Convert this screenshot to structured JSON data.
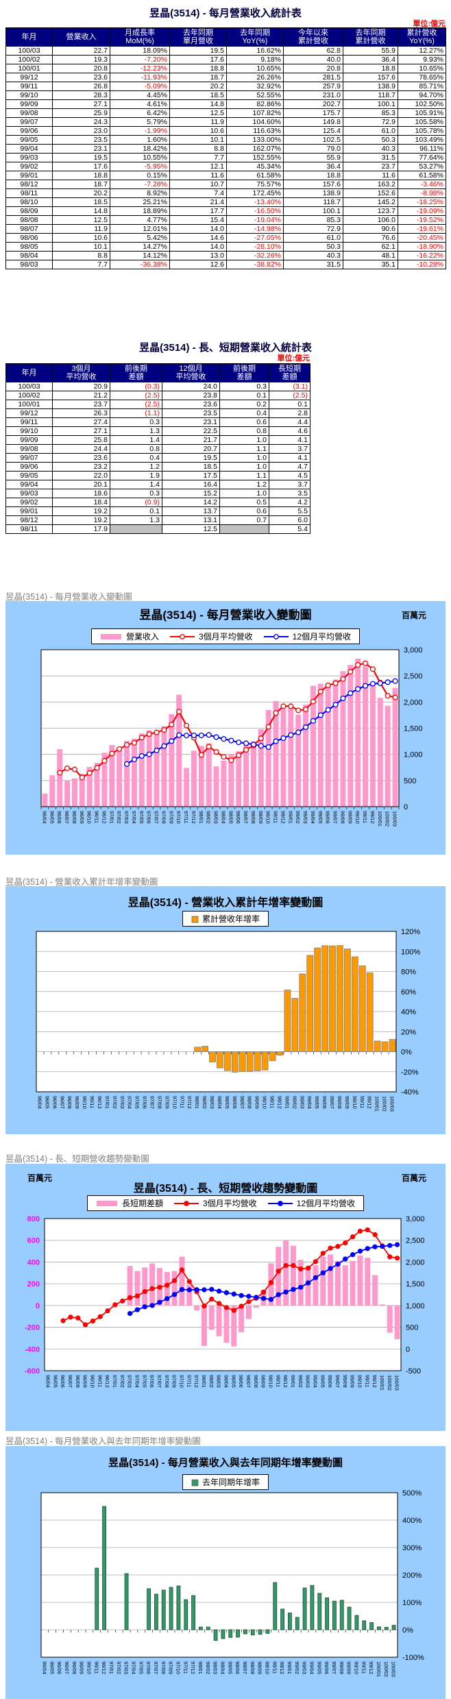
{
  "page": {
    "table1": {
      "title": "昱晶(3514) - 每月營業收入統計表",
      "unit": "單位:億元",
      "headers": [
        "年月",
        "營業收入",
        "月成長率\nMoM(%)",
        "去年同期\n單月營收",
        "去年同期\nYoY(%)",
        "今年以來\n累計營收",
        "去年同期\n累計營收",
        "累計營收\nYoY(%)"
      ],
      "rows": [
        [
          "100/03",
          "22.7",
          "18.09%",
          "19.5",
          "16.62%",
          "62.8",
          "55.9",
          "12.27%"
        ],
        [
          "100/02",
          "19.3",
          "-7.20%",
          "17.6",
          "9.18%",
          "40.0",
          "36.4",
          "9.93%"
        ],
        [
          "100/01",
          "20.8",
          "-12.23%",
          "18.8",
          "10.65%",
          "20.8",
          "18.8",
          "10.65%"
        ],
        [
          "99/12",
          "23.6",
          "-11.93%",
          "18.7",
          "26.26%",
          "281.5",
          "157.6",
          "78.65%"
        ],
        [
          "99/11",
          "26.8",
          "-5.09%",
          "20.2",
          "32.92%",
          "257.9",
          "138.9",
          "85.71%"
        ],
        [
          "99/10",
          "28.3",
          "4.45%",
          "18.5",
          "52.55%",
          "231.0",
          "118.7",
          "94.70%"
        ],
        [
          "99/09",
          "27.1",
          "4.61%",
          "14.8",
          "82.86%",
          "202.7",
          "100.1",
          "102.50%"
        ],
        [
          "99/08",
          "25.9",
          "6.42%",
          "12.5",
          "107.82%",
          "175.7",
          "85.3",
          "105.91%"
        ],
        [
          "99/07",
          "24.3",
          "5.79%",
          "11.9",
          "104.60%",
          "149.8",
          "72.9",
          "105.58%"
        ],
        [
          "99/06",
          "23.0",
          "-1.99%",
          "10.6",
          "116.63%",
          "125.4",
          "61.0",
          "105.78%"
        ],
        [
          "99/05",
          "23.5",
          "1.60%",
          "10.1",
          "133.00%",
          "102.5",
          "50.3",
          "103.49%"
        ],
        [
          "99/04",
          "23.1",
          "18.42%",
          "8.8",
          "162.07%",
          "79.0",
          "40.3",
          "96.11%"
        ],
        [
          "99/03",
          "19.5",
          "10.55%",
          "7.7",
          "152.55%",
          "55.9",
          "31.5",
          "77.64%"
        ],
        [
          "99/02",
          "17.6",
          "-5.95%",
          "12.1",
          "45.34%",
          "36.4",
          "23.7",
          "53.27%"
        ],
        [
          "99/01",
          "18.8",
          "0.15%",
          "11.6",
          "61.58%",
          "18.8",
          "11.6",
          "61.58%"
        ],
        [
          "98/12",
          "18.7",
          "-7.28%",
          "10.7",
          "75.57%",
          "157.6",
          "163.2",
          "-3.46%"
        ],
        [
          "98/11",
          "20.2",
          "8.92%",
          "7.4",
          "172.45%",
          "138.9",
          "152.6",
          "-8.98%"
        ],
        [
          "98/10",
          "18.5",
          "25.21%",
          "21.4",
          "-13.40%",
          "118.7",
          "145.2",
          "-18.25%"
        ],
        [
          "98/09",
          "14.8",
          "18.89%",
          "17.7",
          "-16.50%",
          "100.1",
          "123.7",
          "-19.09%"
        ],
        [
          "98/08",
          "12.5",
          "4.77%",
          "15.4",
          "-19.04%",
          "85.3",
          "106.0",
          "-19.52%"
        ],
        [
          "98/07",
          "11.9",
          "12.01%",
          "14.0",
          "-14.98%",
          "72.9",
          "90.6",
          "-19.61%"
        ],
        [
          "98/06",
          "10.6",
          "5.42%",
          "14.6",
          "-27.05%",
          "61.0",
          "76.6",
          "-20.45%"
        ],
        [
          "98/05",
          "10.1",
          "14.27%",
          "14.0",
          "-28.10%",
          "50.3",
          "62.1",
          "-18.90%"
        ],
        [
          "98/04",
          "8.8",
          "14.12%",
          "13.0",
          "-32.26%",
          "40.3",
          "48.1",
          "-16.22%"
        ],
        [
          "98/03",
          "7.7",
          "-36.38%",
          "12.6",
          "-38.82%",
          "31.5",
          "35.1",
          "-10.28%"
        ]
      ]
    },
    "table2": {
      "title": "昱晶(3514) - 長、短期營業收入統計表",
      "unit": "單位:億元",
      "headers": [
        "年月",
        "3個月\n平均營收",
        "前後期\n差額",
        "12個月\n平均營收",
        "前後期\n差額",
        "長短期\n差額"
      ],
      "rows": [
        [
          "100/03",
          "20.9",
          "(0.3)",
          "24.0",
          "0.3",
          "(3.1)"
        ],
        [
          "100/02",
          "21.2",
          "(2.5)",
          "23.8",
          "0.1",
          "(2.5)"
        ],
        [
          "100/01",
          "23.7",
          "(2.5)",
          "23.6",
          "0.2",
          "0.1"
        ],
        [
          "99/12",
          "26.3",
          "(1.1)",
          "23.5",
          "0.4",
          "2.8"
        ],
        [
          "99/11",
          "27.4",
          "0.3",
          "23.1",
          "0.6",
          "4.4"
        ],
        [
          "99/10",
          "27.1",
          "1.3",
          "22.5",
          "0.8",
          "4.6"
        ],
        [
          "99/09",
          "25.8",
          "1.4",
          "21.7",
          "1.0",
          "4.1"
        ],
        [
          "99/08",
          "24.4",
          "0.8",
          "20.7",
          "1.1",
          "3.7"
        ],
        [
          "99/07",
          "23.6",
          "0.4",
          "19.5",
          "1.0",
          "4.1"
        ],
        [
          "99/06",
          "23.2",
          "1.2",
          "18.5",
          "1.0",
          "4.7"
        ],
        [
          "99/05",
          "22.0",
          "1.9",
          "17.5",
          "1.1",
          "4.5"
        ],
        [
          "99/04",
          "20.1",
          "1.4",
          "16.4",
          "1.2",
          "3.7"
        ],
        [
          "99/03",
          "18.6",
          "0.3",
          "15.2",
          "1.0",
          "3.5"
        ],
        [
          "99/02",
          "18.4",
          "(0.9)",
          "14.2",
          "0.5",
          "4.2"
        ],
        [
          "99/01",
          "19.2",
          "0.1",
          "13.7",
          "0.6",
          "5.5"
        ],
        [
          "98/12",
          "19.2",
          "1.3",
          "13.1",
          "0.7",
          "6.0"
        ],
        [
          "98/11",
          "17.9",
          "",
          "12.5",
          "",
          "5.4"
        ]
      ]
    }
  },
  "months": [
    "96/04",
    "96/05",
    "96/06",
    "96/07",
    "96/08",
    "96/09",
    "96/10",
    "96/11",
    "96/12",
    "97/01",
    "97/02",
    "97/03",
    "97/04",
    "97/05",
    "97/06",
    "97/07",
    "97/08",
    "97/09",
    "97/10",
    "97/11",
    "97/12",
    "98/01",
    "98/02",
    "98/03",
    "98/04",
    "98/05",
    "98/06",
    "98/07",
    "98/08",
    "98/09",
    "98/10",
    "98/11",
    "98/12",
    "99/01",
    "99/02",
    "99/03",
    "99/04",
    "99/05",
    "99/06",
    "99/07",
    "99/08",
    "99/09",
    "99/10",
    "99/11",
    "99/12",
    "100/01",
    "100/02",
    "100/03"
  ],
  "chart_data": [
    {
      "type": "bar",
      "caption": "昱晶(3514) - 每月營業收入變動圖",
      "title": "昱晶(3514) - 每月營業收入變動圖",
      "unit_right": "百萬元",
      "x": "months",
      "axes": {
        "right": {
          "min": 0,
          "max": 3000,
          "step": 500
        }
      },
      "series": [
        {
          "name": "營業收入",
          "kind": "bar",
          "color": "#ff99cc",
          "axis": "right",
          "values": [
            250,
            600,
            1100,
            500,
            540,
            630,
            760,
            840,
            1030,
            1180,
            1100,
            1260,
            1300,
            1400,
            1460,
            1400,
            1540,
            1770,
            2140,
            740,
            1070,
            1160,
            1210,
            770,
            880,
            1010,
            1060,
            1190,
            1250,
            1480,
            1850,
            2020,
            1870,
            1880,
            1760,
            1950,
            2310,
            2350,
            2300,
            2430,
            2590,
            2710,
            2830,
            2680,
            2360,
            2080,
            1930,
            2270
          ]
        },
        {
          "name": "3個月平均營收",
          "kind": "line",
          "marker": "open",
          "color": "#ff0000",
          "axis": "right",
          "values": [
            null,
            null,
            650,
            733,
            713,
            557,
            643,
            743,
            877,
            1017,
            1103,
            1180,
            1220,
            1320,
            1387,
            1420,
            1467,
            1570,
            1817,
            1550,
            1317,
            990,
            1147,
            1047,
            953,
            887,
            983,
            1087,
            1167,
            1307,
            1527,
            1790,
            1920,
            1920,
            1840,
            1860,
            2010,
            2200,
            2320,
            2360,
            2440,
            2580,
            2710,
            2740,
            2630,
            2370,
            2120,
            2090
          ]
        },
        {
          "name": "12個月平均營收",
          "kind": "line",
          "marker": "open",
          "color": "#0000ff",
          "axis": "right",
          "values": [
            null,
            null,
            null,
            null,
            null,
            null,
            null,
            null,
            null,
            null,
            null,
            816,
            903,
            970,
            1000,
            1075,
            1158,
            1253,
            1368,
            1360,
            1363,
            1362,
            1371,
            1330,
            1295,
            1263,
            1229,
            1212,
            1188,
            1163,
            1139,
            1250,
            1310,
            1370,
            1420,
            1520,
            1640,
            1750,
            1850,
            1950,
            2070,
            2170,
            2250,
            2310,
            2350,
            2360,
            2380,
            2400
          ]
        }
      ]
    },
    {
      "type": "bar",
      "caption": "昱晶(3514) - 營業收入累計年增率變動圖",
      "title": "昱晶(3514) - 營業收入累計年增率變動圖",
      "x": "months",
      "axes": {
        "right": {
          "min": -40,
          "max": 120,
          "step": 20,
          "suffix": "%"
        }
      },
      "series": [
        {
          "name": "累計營收年增率",
          "kind": "bar",
          "color": "#ff9900",
          "stroke": "#808080",
          "axis": "right",
          "values": [
            null,
            null,
            null,
            null,
            null,
            null,
            null,
            null,
            null,
            null,
            null,
            null,
            null,
            null,
            null,
            null,
            null,
            null,
            null,
            null,
            null,
            4.5,
            5.5,
            -10.28,
            -16.22,
            -18.9,
            -20.45,
            -19.61,
            -19.52,
            -19.09,
            -18.25,
            -8.98,
            -3.46,
            61.58,
            53.27,
            77.64,
            96.11,
            103.49,
            105.78,
            105.58,
            105.91,
            102.5,
            94.7,
            85.71,
            78.65,
            10.65,
            9.93,
            12.27
          ]
        }
      ]
    },
    {
      "type": "bar",
      "caption": "昱晶(3514) - 長、短期營收趨勢變動圖",
      "title": "昱晶(3514) - 長、短期營收趨勢變動圖",
      "unit_left": "百萬元",
      "unit_right": "百萬元",
      "x": "months",
      "axes": {
        "left": {
          "min": -600,
          "max": 800,
          "step": 200,
          "color": "#ff00ff"
        },
        "right": {
          "min": -500,
          "max": 3000,
          "step": 500
        }
      },
      "series": [
        {
          "name": "長短期差額",
          "kind": "bar",
          "color": "#ff99cc",
          "axis": "left",
          "values": [
            null,
            null,
            null,
            null,
            null,
            null,
            null,
            null,
            null,
            null,
            null,
            364,
            317,
            350,
            387,
            345,
            309,
            317,
            449,
            190,
            -46,
            -372,
            -224,
            -283,
            -342,
            -376,
            -246,
            -125,
            -21,
            144,
            388,
            540,
            600,
            550,
            420,
            350,
            370,
            450,
            470,
            410,
            370,
            410,
            460,
            440,
            280,
            10,
            -250,
            -310
          ]
        },
        {
          "name": "3個月平均營收",
          "kind": "line",
          "marker": "solid",
          "color": "#ff0000",
          "axis": "right",
          "values": [
            null,
            null,
            650,
            733,
            713,
            557,
            643,
            743,
            877,
            1017,
            1103,
            1180,
            1220,
            1320,
            1387,
            1420,
            1467,
            1570,
            1817,
            1550,
            1317,
            990,
            1147,
            1047,
            953,
            887,
            983,
            1087,
            1167,
            1307,
            1527,
            1790,
            1920,
            1920,
            1840,
            1860,
            2010,
            2200,
            2320,
            2360,
            2440,
            2580,
            2710,
            2740,
            2630,
            2370,
            2120,
            2090
          ]
        },
        {
          "name": "12個月平均營收",
          "kind": "line",
          "marker": "solid",
          "color": "#0000ff",
          "axis": "right",
          "values": [
            null,
            null,
            null,
            null,
            null,
            null,
            null,
            null,
            null,
            null,
            null,
            816,
            903,
            970,
            1000,
            1075,
            1158,
            1253,
            1368,
            1360,
            1363,
            1362,
            1371,
            1330,
            1295,
            1263,
            1229,
            1212,
            1188,
            1163,
            1139,
            1250,
            1310,
            1370,
            1420,
            1520,
            1640,
            1750,
            1850,
            1950,
            2070,
            2170,
            2250,
            2310,
            2350,
            2360,
            2380,
            2400
          ]
        }
      ]
    },
    {
      "type": "bar",
      "caption": "昱晶(3514) - 每月營業收入與去年同期年增率變動圖",
      "title": "昱晶(3514) - 每月營業收入與去年同期年增率變動圖",
      "x": "months",
      "axes": {
        "right": {
          "min": -100,
          "max": 500,
          "step": 100,
          "suffix": "%"
        }
      },
      "series": [
        {
          "name": "去年同期年增率",
          "kind": "bar",
          "color": "#339966",
          "stroke": "#1a4d33",
          "axis": "right",
          "values": [
            null,
            null,
            null,
            null,
            null,
            null,
            null,
            225,
            450,
            null,
            null,
            205,
            null,
            null,
            150,
            130,
            145,
            155,
            160,
            110,
            125,
            10,
            10,
            -38.82,
            -32.26,
            -28.1,
            -27.05,
            -14.98,
            -19.04,
            -16.5,
            -13.4,
            172.45,
            75.57,
            61.58,
            45.34,
            152.55,
            162.07,
            133,
            116.63,
            104.6,
            107.82,
            82.86,
            52.55,
            32.92,
            26.26,
            10.65,
            9.18,
            16.62
          ]
        }
      ]
    }
  ]
}
